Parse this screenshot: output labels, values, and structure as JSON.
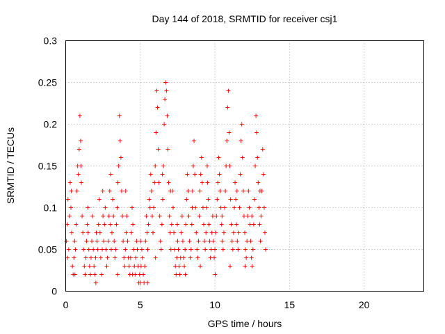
{
  "chart_data": {
    "type": "scatter",
    "title": "Day 144 of 2018, SRMTID for receiver csj1",
    "xlabel": "GPS time / hours",
    "ylabel": "SRMTID / TECUs",
    "xlim": [
      0,
      24
    ],
    "ylim": [
      0,
      0.3
    ],
    "xticks": [
      0,
      5,
      10,
      15,
      20
    ],
    "yticks": [
      0,
      0.05,
      0.1,
      0.15,
      0.2,
      0.25,
      0.3
    ],
    "xtick_labels": [
      "0",
      "5",
      "10",
      "15",
      "20"
    ],
    "ytick_labels": [
      "0",
      "0.05",
      "0.1",
      "0.15",
      "0.2",
      "0.25",
      "0.3"
    ],
    "grid": true,
    "marker": "+",
    "color": "#ff0000",
    "series": [
      {
        "name": "SRMTID",
        "points": [
          [
            0.05,
            0.06
          ],
          [
            0.1,
            0.08
          ],
          [
            0.15,
            0.11
          ],
          [
            0.2,
            0.05
          ],
          [
            0.25,
            0.09
          ],
          [
            0.3,
            0.13
          ],
          [
            0.35,
            0.1
          ],
          [
            0.4,
            0.07
          ],
          [
            0.45,
            0.03
          ],
          [
            0.5,
            0.02
          ],
          [
            0.55,
            0.04
          ],
          [
            0.6,
            0.06
          ],
          [
            0.65,
            0.05
          ],
          [
            0.7,
            0.08
          ],
          [
            0.75,
            0.12
          ],
          [
            0.8,
            0.15
          ],
          [
            0.85,
            0.14
          ],
          [
            0.9,
            0.17
          ],
          [
            0.95,
            0.21
          ],
          [
            1.0,
            0.18
          ],
          [
            1.05,
            0.13
          ],
          [
            1.1,
            0.09
          ],
          [
            1.15,
            0.07
          ],
          [
            1.2,
            0.05
          ],
          [
            1.25,
            0.03
          ],
          [
            1.3,
            0.02
          ],
          [
            1.35,
            0.04
          ],
          [
            1.4,
            0.06
          ],
          [
            1.45,
            0.08
          ],
          [
            1.5,
            0.07
          ],
          [
            1.55,
            0.05
          ],
          [
            1.6,
            0.03
          ],
          [
            1.65,
            0.02
          ],
          [
            1.7,
            0.04
          ],
          [
            1.75,
            0.06
          ],
          [
            1.8,
            0.09
          ],
          [
            1.85,
            0.05
          ],
          [
            1.9,
            0.03
          ],
          [
            1.95,
            0.02
          ],
          [
            2.0,
            0.04
          ],
          [
            2.05,
            0.07
          ],
          [
            2.1,
            0.06
          ],
          [
            2.15,
            0.05
          ],
          [
            2.2,
            0.08
          ],
          [
            2.25,
            0.11
          ],
          [
            2.3,
            0.07
          ],
          [
            2.35,
            0.04
          ],
          [
            2.4,
            0.02
          ],
          [
            2.45,
            0.05
          ],
          [
            2.5,
            0.09
          ],
          [
            2.55,
            0.06
          ],
          [
            2.6,
            0.08
          ],
          [
            2.65,
            0.1
          ],
          [
            2.7,
            0.05
          ],
          [
            2.75,
            0.03
          ],
          [
            2.8,
            0.04
          ],
          [
            2.85,
            0.06
          ],
          [
            2.9,
            0.09
          ],
          [
            2.95,
            0.12
          ],
          [
            3.0,
            0.08
          ],
          [
            3.05,
            0.05
          ],
          [
            3.1,
            0.07
          ],
          [
            3.15,
            0.11
          ],
          [
            3.2,
            0.09
          ],
          [
            3.25,
            0.06
          ],
          [
            3.3,
            0.04
          ],
          [
            3.35,
            0.05
          ],
          [
            3.4,
            0.08
          ],
          [
            3.45,
            0.1
          ],
          [
            3.5,
            0.13
          ],
          [
            3.55,
            0.15
          ],
          [
            3.6,
            0.21
          ],
          [
            3.65,
            0.18
          ],
          [
            3.7,
            0.16
          ],
          [
            3.75,
            0.12
          ],
          [
            3.8,
            0.09
          ],
          [
            3.85,
            0.06
          ],
          [
            3.9,
            0.04
          ],
          [
            3.95,
            0.03
          ],
          [
            4.0,
            0.05
          ],
          [
            4.05,
            0.07
          ],
          [
            4.1,
            0.09
          ],
          [
            4.15,
            0.06
          ],
          [
            4.2,
            0.04
          ],
          [
            4.25,
            0.03
          ],
          [
            4.3,
            0.02
          ],
          [
            4.35,
            0.04
          ],
          [
            4.4,
            0.07
          ],
          [
            4.45,
            0.1
          ],
          [
            4.5,
            0.08
          ],
          [
            4.55,
            0.05
          ],
          [
            4.6,
            0.03
          ],
          [
            4.65,
            0.02
          ],
          [
            4.7,
            0.04
          ],
          [
            4.75,
            0.06
          ],
          [
            4.8,
            0.05
          ],
          [
            4.85,
            0.03
          ],
          [
            4.9,
            0.01
          ],
          [
            4.95,
            0.02
          ],
          [
            5.0,
            0.01
          ],
          [
            5.05,
            0.03
          ],
          [
            5.1,
            0.05
          ],
          [
            5.15,
            0.04
          ],
          [
            5.2,
            0.02
          ],
          [
            5.25,
            0.01
          ],
          [
            5.3,
            0.03
          ],
          [
            5.35,
            0.06
          ],
          [
            5.4,
            0.09
          ],
          [
            5.45,
            0.07
          ],
          [
            5.5,
            0.05
          ],
          [
            5.55,
            0.08
          ],
          [
            5.6,
            0.11
          ],
          [
            5.65,
            0.1
          ],
          [
            5.7,
            0.14
          ],
          [
            5.75,
            0.12
          ],
          [
            5.8,
            0.09
          ],
          [
            5.85,
            0.07
          ],
          [
            5.9,
            0.1
          ],
          [
            5.95,
            0.13
          ],
          [
            6.0,
            0.15
          ],
          [
            6.05,
            0.19
          ],
          [
            6.1,
            0.24
          ],
          [
            6.15,
            0.22
          ],
          [
            6.2,
            0.17
          ],
          [
            6.25,
            0.13
          ],
          [
            6.3,
            0.09
          ],
          [
            6.35,
            0.06
          ],
          [
            6.4,
            0.05
          ],
          [
            6.45,
            0.08
          ],
          [
            6.5,
            0.11
          ],
          [
            6.55,
            0.15
          ],
          [
            6.6,
            0.2
          ],
          [
            6.65,
            0.23
          ],
          [
            6.7,
            0.25
          ],
          [
            6.75,
            0.24
          ],
          [
            6.8,
            0.21
          ],
          [
            6.85,
            0.17
          ],
          [
            6.9,
            0.13
          ],
          [
            6.95,
            0.09
          ],
          [
            7.0,
            0.07
          ],
          [
            7.05,
            0.05
          ],
          [
            7.1,
            0.08
          ],
          [
            7.15,
            0.12
          ],
          [
            7.2,
            0.1
          ],
          [
            7.25,
            0.07
          ],
          [
            7.3,
            0.05
          ],
          [
            7.35,
            0.03
          ],
          [
            7.4,
            0.02
          ],
          [
            7.45,
            0.04
          ],
          [
            7.5,
            0.06
          ],
          [
            7.55,
            0.05
          ],
          [
            7.6,
            0.03
          ],
          [
            7.65,
            0.02
          ],
          [
            7.7,
            0.04
          ],
          [
            7.75,
            0.07
          ],
          [
            7.8,
            0.09
          ],
          [
            7.85,
            0.06
          ],
          [
            7.9,
            0.04
          ],
          [
            7.95,
            0.03
          ],
          [
            8.0,
            0.05
          ],
          [
            8.05,
            0.08
          ],
          [
            8.1,
            0.11
          ],
          [
            8.15,
            0.14
          ],
          [
            8.2,
            0.12
          ],
          [
            8.25,
            0.09
          ],
          [
            8.3,
            0.06
          ],
          [
            8.35,
            0.04
          ],
          [
            8.4,
            0.05
          ],
          [
            8.45,
            0.08
          ],
          [
            8.5,
            0.12
          ],
          [
            8.55,
            0.15
          ],
          [
            8.6,
            0.18
          ],
          [
            8.65,
            0.14
          ],
          [
            8.7,
            0.1
          ],
          [
            8.75,
            0.07
          ],
          [
            8.8,
            0.05
          ],
          [
            8.85,
            0.04
          ],
          [
            8.9,
            0.06
          ],
          [
            8.95,
            0.09
          ],
          [
            9.0,
            0.12
          ],
          [
            9.05,
            0.14
          ],
          [
            9.1,
            0.16
          ],
          [
            9.15,
            0.13
          ],
          [
            9.2,
            0.1
          ],
          [
            9.25,
            0.08
          ],
          [
            9.3,
            0.06
          ],
          [
            9.35,
            0.05
          ],
          [
            9.4,
            0.07
          ],
          [
            9.45,
            0.1
          ],
          [
            9.5,
            0.13
          ],
          [
            9.55,
            0.11
          ],
          [
            9.6,
            0.08
          ],
          [
            9.65,
            0.06
          ],
          [
            9.7,
            0.04
          ],
          [
            9.75,
            0.05
          ],
          [
            9.8,
            0.07
          ],
          [
            9.85,
            0.09
          ],
          [
            9.9,
            0.06
          ],
          [
            9.95,
            0.04
          ],
          [
            10.0,
            0.05
          ],
          [
            10.05,
            0.07
          ],
          [
            10.1,
            0.09
          ],
          [
            10.15,
            0.11
          ],
          [
            10.2,
            0.13
          ],
          [
            10.25,
            0.16
          ],
          [
            10.3,
            0.14
          ],
          [
            10.35,
            0.12
          ],
          [
            10.4,
            0.1
          ],
          [
            10.45,
            0.08
          ],
          [
            10.5,
            0.06
          ],
          [
            10.55,
            0.05
          ],
          [
            10.6,
            0.07
          ],
          [
            10.65,
            0.1
          ],
          [
            10.7,
            0.12
          ],
          [
            10.75,
            0.15
          ],
          [
            10.8,
            0.18
          ],
          [
            10.85,
            0.22
          ],
          [
            10.9,
            0.24
          ],
          [
            10.95,
            0.19
          ],
          [
            11.0,
            0.15
          ],
          [
            11.05,
            0.11
          ],
          [
            11.1,
            0.08
          ],
          [
            11.15,
            0.06
          ],
          [
            11.2,
            0.05
          ],
          [
            11.25,
            0.07
          ],
          [
            11.3,
            0.1
          ],
          [
            11.35,
            0.13
          ],
          [
            11.4,
            0.11
          ],
          [
            11.45,
            0.08
          ],
          [
            11.5,
            0.06
          ],
          [
            11.55,
            0.05
          ],
          [
            11.6,
            0.07
          ],
          [
            11.65,
            0.1
          ],
          [
            11.7,
            0.14
          ],
          [
            11.75,
            0.18
          ],
          [
            11.8,
            0.2
          ],
          [
            11.85,
            0.16
          ],
          [
            11.9,
            0.12
          ],
          [
            11.95,
            0.09
          ],
          [
            12.0,
            0.07
          ],
          [
            12.05,
            0.05
          ],
          [
            12.1,
            0.04
          ],
          [
            12.15,
            0.06
          ],
          [
            12.2,
            0.09
          ],
          [
            12.25,
            0.12
          ],
          [
            12.3,
            0.1
          ],
          [
            12.35,
            0.08
          ],
          [
            12.4,
            0.06
          ],
          [
            12.45,
            0.04
          ],
          [
            12.5,
            0.03
          ],
          [
            12.55,
            0.05
          ],
          [
            12.6,
            0.08
          ],
          [
            12.65,
            0.11
          ],
          [
            12.7,
            0.15
          ],
          [
            12.75,
            0.21
          ],
          [
            12.8,
            0.19
          ],
          [
            12.85,
            0.16
          ],
          [
            12.9,
            0.13
          ],
          [
            12.95,
            0.1
          ],
          [
            13.0,
            0.08
          ],
          [
            13.05,
            0.06
          ],
          [
            13.1,
            0.09
          ],
          [
            13.15,
            0.12
          ],
          [
            13.2,
            0.17
          ],
          [
            13.25,
            0.14
          ],
          [
            13.3,
            0.1
          ],
          [
            13.35,
            0.07
          ],
          [
            13.4,
            0.05
          ],
          [
            0.12,
            0.04
          ],
          [
            0.38,
            0.12
          ],
          [
            0.62,
            0.02
          ],
          [
            1.02,
            0.15
          ],
          [
            1.48,
            0.1
          ],
          [
            2.02,
            0.01
          ],
          [
            2.48,
            0.12
          ],
          [
            3.02,
            0.14
          ],
          [
            3.48,
            0.02
          ],
          [
            4.02,
            0.12
          ],
          [
            4.48,
            0.02
          ],
          [
            5.02,
            0.06
          ],
          [
            5.48,
            0.01
          ],
          [
            6.02,
            0.04
          ],
          [
            6.48,
            0.14
          ],
          [
            7.02,
            0.12
          ],
          [
            7.48,
            0.08
          ],
          [
            8.02,
            0.02
          ],
          [
            8.48,
            0.1
          ],
          [
            9.02,
            0.03
          ],
          [
            9.48,
            0.15
          ],
          [
            10.02,
            0.02
          ],
          [
            10.48,
            0.09
          ],
          [
            11.02,
            0.03
          ],
          [
            11.48,
            0.12
          ],
          [
            12.02,
            0.03
          ],
          [
            12.48,
            0.09
          ],
          [
            13.02,
            0.12
          ]
        ]
      }
    ]
  }
}
